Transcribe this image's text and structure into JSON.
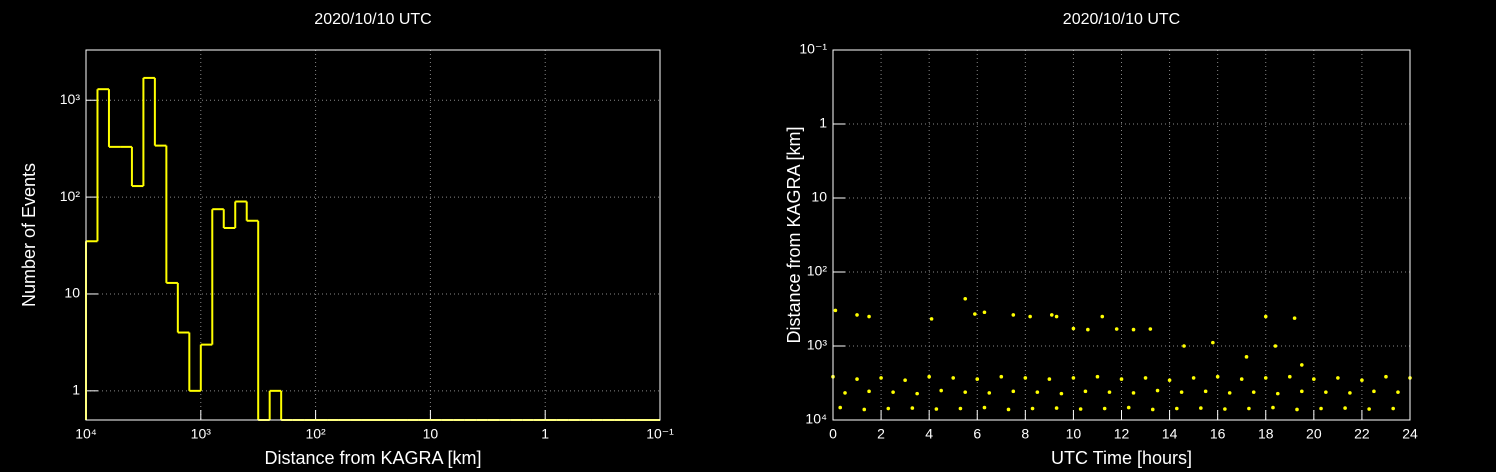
{
  "chart_data": [
    {
      "type": "histogram",
      "title": "2020/10/10 UTC",
      "x_label": "Distance from KAGRA [km]",
      "y_label": "Number of Events",
      "bins": [
        10000,
        7943,
        6310,
        5012,
        3981,
        3162,
        2512,
        1995,
        1585,
        1259,
        1000,
        794.3,
        631,
        501.2,
        398.1,
        316.2,
        251.2,
        199.5,
        158.5,
        125.9,
        100,
        79.43,
        63.1,
        50.12,
        39.81,
        31.62,
        25.12,
        19.95,
        15.85,
        12.59,
        10,
        7.943,
        6.31,
        5.012,
        3.981,
        3.162,
        2.512,
        1.995,
        1.585,
        1.259,
        1,
        0.7943,
        0.631,
        0.5012,
        0.3981,
        0.3162,
        0.2512,
        0.1995,
        0.1585,
        0.1259,
        0.1
      ],
      "values": [
        35,
        1300,
        330,
        330,
        130,
        1700,
        340,
        13,
        4,
        1,
        3,
        75,
        48,
        90,
        57,
        0,
        1,
        0,
        0,
        0,
        0,
        0,
        0,
        0,
        0,
        0,
        0,
        0,
        0,
        0,
        0,
        0,
        0,
        0,
        0,
        0,
        0,
        0,
        0,
        0,
        0,
        0,
        0,
        0,
        0,
        0,
        0,
        0,
        0,
        0
      ],
      "color": "#ffff00",
      "log_x": true,
      "log_y": true,
      "grid": true,
      "xlim": [
        10000,
        0.1
      ],
      "ylim": [
        0.5,
        3300
      ],
      "xticks": [
        {
          "value": 10000,
          "label": "10⁴"
        },
        {
          "value": 1000,
          "label": "10³"
        },
        {
          "value": 100,
          "label": "10²"
        },
        10,
        1,
        {
          "value": 0.1,
          "label": "10⁻¹"
        }
      ],
      "yticks": [
        1,
        10,
        {
          "value": 100,
          "label": "10²"
        },
        {
          "value": 1000,
          "label": "10³"
        }
      ]
    },
    {
      "type": "scatter",
      "title": "2020/10/10 UTC",
      "x_label": "UTC Time [hours]",
      "y_label": "Distance from KAGRA [km]",
      "x": [
        0,
        1,
        2,
        3,
        4,
        5,
        6,
        7,
        8,
        9,
        10,
        11,
        12,
        13,
        14,
        15,
        16,
        17,
        18,
        19,
        20,
        21,
        22,
        23,
        24,
        0.5,
        1.5,
        2.5,
        3.5,
        4.5,
        5.5,
        6.5,
        7.5,
        8.5,
        9.5,
        10.5,
        11.5,
        12.5,
        13.5,
        14.5,
        15.5,
        16.5,
        17.5,
        18.5,
        19.5,
        20.5,
        21.5,
        22.5,
        23.5,
        0.3,
        1.3,
        2.3,
        3.3,
        4.3,
        5.3,
        6.3,
        7.3,
        8.3,
        9.3,
        10.3,
        11.3,
        12.3,
        13.3,
        14.3,
        15.3,
        16.3,
        17.3,
        18.3,
        19.3,
        20.3,
        21.3,
        22.3,
        23.3,
        0.1,
        1.0,
        1.5,
        4.1,
        5.5,
        5.9,
        6.3,
        7.5,
        8.2,
        9.1,
        9.3,
        10.0,
        10.6,
        11.2,
        11.8,
        12.5,
        13.2,
        14.6,
        15.8,
        17.2,
        18.0,
        18.4,
        19.2,
        19.5
      ],
      "values": [
        2600,
        2800,
        2700,
        2900,
        2600,
        2700,
        2800,
        2600,
        2700,
        2800,
        2700,
        2600,
        2800,
        2700,
        2900,
        2700,
        2600,
        2800,
        2700,
        2600,
        2800,
        2700,
        2900,
        2600,
        2700,
        4300,
        4100,
        4200,
        4400,
        4000,
        4200,
        4300,
        4100,
        4200,
        4400,
        4100,
        4200,
        4300,
        4000,
        4200,
        4100,
        4300,
        4200,
        4400,
        4100,
        4200,
        4300,
        4100,
        4200,
        6800,
        7200,
        7000,
        6900,
        7100,
        7000,
        6800,
        7200,
        7000,
        6900,
        7100,
        7000,
        6800,
        7200,
        7000,
        6900,
        7100,
        7000,
        6800,
        7200,
        7000,
        6900,
        7100,
        7000,
        330,
        380,
        400,
        430,
        230,
        370,
        350,
        380,
        400,
        380,
        400,
        580,
        600,
        400,
        590,
        600,
        590,
        1000,
        900,
        1400,
        400,
        1000,
        420,
        1800
      ],
      "color": "#ffff00",
      "log_y": true,
      "grid": true,
      "xlim": [
        0,
        24
      ],
      "ylim": [
        10000,
        0.1
      ],
      "xticks": [
        0,
        2,
        4,
        6,
        8,
        10,
        12,
        14,
        16,
        18,
        20,
        22,
        24
      ],
      "yticks": [
        {
          "value": 0.1,
          "label": "10⁻¹"
        },
        1,
        10,
        {
          "value": 100,
          "label": "10²"
        },
        {
          "value": 1000,
          "label": "10³"
        },
        {
          "value": 10000,
          "label": "10⁴"
        }
      ]
    }
  ]
}
